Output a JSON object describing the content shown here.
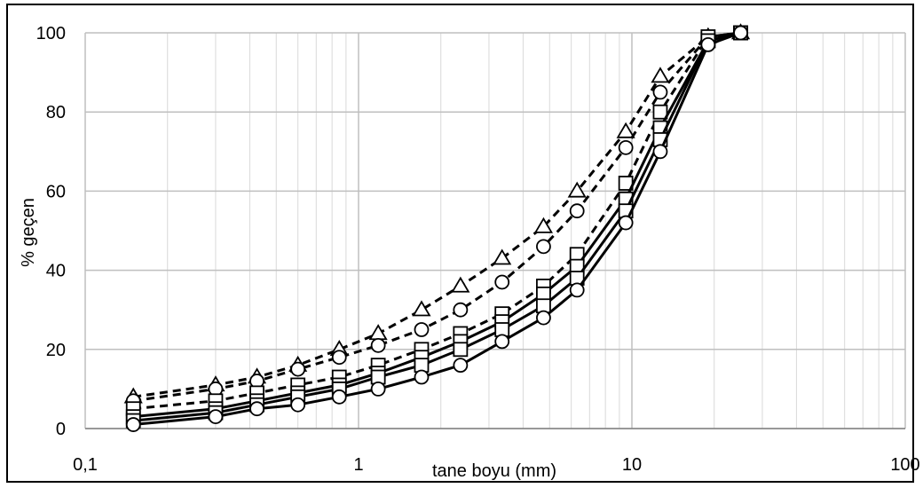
{
  "chart_data": {
    "type": "line",
    "title": "",
    "xlabel": "tane boyu (mm)",
    "ylabel": "% geçen",
    "xscale": "log",
    "xlim": [
      0.1,
      100
    ],
    "ylim": [
      0,
      100
    ],
    "grid": true,
    "legend": "none",
    "x_tick_labels": [
      "0,1",
      "1",
      "10",
      "100"
    ],
    "y_tick_labels": [
      "0",
      "20",
      "40",
      "60",
      "80",
      "100"
    ],
    "x_tick_values": [
      0.1,
      1,
      10,
      100
    ],
    "y_tick_values": [
      0,
      20,
      40,
      60,
      80,
      100
    ],
    "line_color": "#000000",
    "series": [
      {
        "line": "dashed",
        "marker": "triangle",
        "x": [
          0.15,
          0.3,
          0.425,
          0.6,
          0.85,
          1.18,
          1.7,
          2.36,
          3.35,
          4.75,
          6.3,
          9.5,
          12.7,
          19,
          25
        ],
        "y": [
          8,
          11,
          13,
          16,
          20,
          24,
          30,
          36,
          43,
          51,
          60,
          75,
          89,
          99,
          100
        ]
      },
      {
        "line": "dashed",
        "marker": "circle",
        "x": [
          0.15,
          0.3,
          0.425,
          0.6,
          0.85,
          1.18,
          1.7,
          2.36,
          3.35,
          4.75,
          6.3,
          9.5,
          12.7,
          19,
          25
        ],
        "y": [
          7,
          10,
          12,
          15,
          18,
          21,
          25,
          30,
          37,
          46,
          55,
          71,
          85,
          99,
          100
        ]
      },
      {
        "line": "dashed",
        "marker": "square",
        "x": [
          0.15,
          0.3,
          0.425,
          0.6,
          0.85,
          1.18,
          1.7,
          2.36,
          3.35,
          4.75,
          6.3,
          9.5,
          12.7,
          19,
          25
        ],
        "y": [
          5,
          7,
          9,
          11,
          13,
          16,
          20,
          24,
          29,
          36,
          44,
          62,
          80,
          99,
          100
        ]
      },
      {
        "line": "solid",
        "marker": "square",
        "x": [
          0.15,
          0.3,
          0.425,
          0.6,
          0.85,
          1.18,
          1.7,
          2.36,
          3.35,
          4.75,
          6.3,
          9.5,
          12.7,
          19,
          25
        ],
        "y": [
          3,
          5,
          7,
          9,
          11,
          14,
          18,
          22,
          27,
          34,
          41,
          58,
          76,
          98,
          100
        ]
      },
      {
        "line": "solid",
        "marker": "square",
        "x": [
          0.15,
          0.3,
          0.425,
          0.6,
          0.85,
          1.18,
          1.7,
          2.36,
          3.35,
          4.75,
          6.3,
          9.5,
          12.7,
          19,
          25
        ],
        "y": [
          2,
          4,
          6,
          8,
          10,
          13,
          16,
          20,
          25,
          31,
          38,
          55,
          73,
          98,
          100
        ]
      },
      {
        "line": "solid",
        "marker": "circle",
        "x": [
          0.15,
          0.3,
          0.425,
          0.6,
          0.85,
          1.18,
          1.7,
          2.36,
          3.35,
          4.75,
          6.3,
          9.5,
          12.7,
          19,
          25
        ],
        "y": [
          1,
          3,
          5,
          6,
          8,
          10,
          13,
          16,
          22,
          28,
          35,
          52,
          70,
          97,
          100
        ]
      }
    ]
  }
}
